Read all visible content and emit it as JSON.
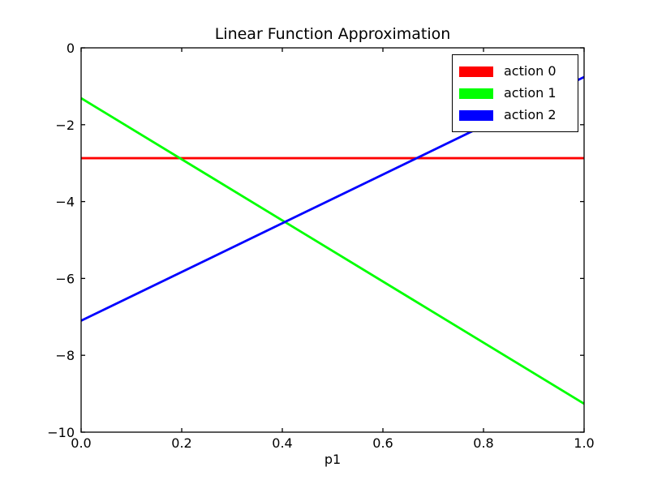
{
  "chart_data": {
    "type": "line",
    "title": "Linear Function Approximation",
    "xlabel": "p1",
    "ylabel": "",
    "xlim": [
      0.0,
      1.0
    ],
    "ylim": [
      -10,
      0
    ],
    "grid": false,
    "legend_position": "upper right",
    "xticks": [
      {
        "value": 0.0,
        "label": "0.0"
      },
      {
        "value": 0.2,
        "label": "0.2"
      },
      {
        "value": 0.4,
        "label": "0.4"
      },
      {
        "value": 0.6,
        "label": "0.6"
      },
      {
        "value": 0.8,
        "label": "0.8"
      },
      {
        "value": 1.0,
        "label": "1.0"
      }
    ],
    "yticks": [
      {
        "value": 0,
        "label": "0"
      },
      {
        "value": -2,
        "label": "−2"
      },
      {
        "value": -4,
        "label": "−4"
      },
      {
        "value": -6,
        "label": "−6"
      },
      {
        "value": -8,
        "label": "−8"
      },
      {
        "value": -10,
        "label": "−10"
      }
    ],
    "series": [
      {
        "name": "action 0",
        "color": "#ff0000",
        "x": [
          0.0,
          1.0
        ],
        "y": [
          -2.87,
          -2.87
        ]
      },
      {
        "name": "action 1",
        "color": "#00ff00",
        "x": [
          0.0,
          1.0
        ],
        "y": [
          -1.31,
          -9.26
        ]
      },
      {
        "name": "action 2",
        "color": "#0000ff",
        "x": [
          0.0,
          1.0
        ],
        "y": [
          -7.1,
          -0.76
        ]
      }
    ],
    "axis_color": "#000000",
    "background_color": "#ffffff"
  }
}
